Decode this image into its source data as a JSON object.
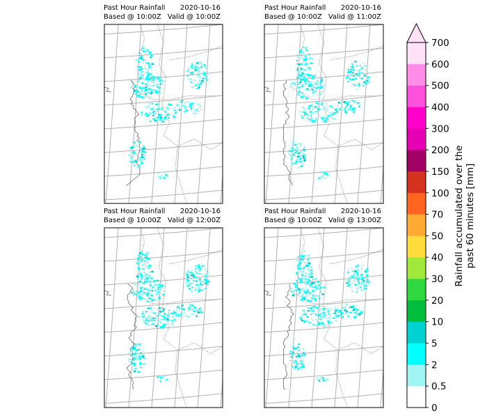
{
  "chart_data": {
    "type": "heatmap",
    "panels": [
      {
        "title_left": "Past Hour Rainfall",
        "date": "2020-10-16",
        "based": "Based @ 10:00Z",
        "valid": "Valid @ 10:00Z"
      },
      {
        "title_left": "Past Hour Rainfall",
        "date": "2020-10-16",
        "based": "Based @ 10:00Z",
        "valid": "Valid @ 11:00Z"
      },
      {
        "title_left": "Past Hour Rainfall",
        "date": "2020-10-16",
        "based": "Based @ 10:00Z",
        "valid": "Valid @ 12:00Z"
      },
      {
        "title_left": "Past Hour Rainfall",
        "date": "2020-10-16",
        "based": "Based @ 10:00Z",
        "valid": "Valid @ 13:00Z"
      }
    ],
    "colorbar": {
      "label_line1": "Rainfall accumulated over the",
      "label_line2": "past 60 minutes [mm]",
      "ticks": [
        "0",
        "0.5",
        "2",
        "5",
        "10",
        "20",
        "30",
        "40",
        "50",
        "70",
        "100",
        "150",
        "200",
        "300",
        "400",
        "500",
        "600",
        "700"
      ],
      "colors": [
        "#ffffff",
        "#a0f5f5",
        "#00ffff",
        "#00d2d2",
        "#00be3c",
        "#30d840",
        "#a0e83a",
        "#ffdc3c",
        "#ffaa32",
        "#ff6420",
        "#d2321e",
        "#a00064",
        "#e600b4",
        "#ff00c8",
        "#ff50dc",
        "#ff8ce6",
        "#ffe1f8"
      ],
      "extend": "max"
    }
  }
}
